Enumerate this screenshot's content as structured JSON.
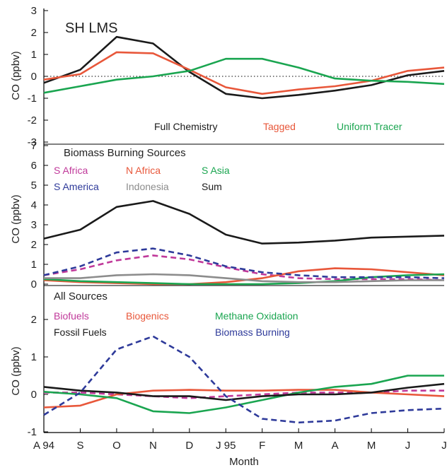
{
  "figure": {
    "xlabel": "Month",
    "x_ticks": [
      "A 94",
      "S",
      "O",
      "N",
      "D",
      "J 95",
      "F",
      "M",
      "A",
      "M",
      "J",
      "J"
    ]
  },
  "colors": {
    "black": "#1a1a1a",
    "red": "#e8573a",
    "green": "#1aa550",
    "magenta": "#c0399a",
    "blue": "#2e3a9a",
    "gray": "#8c8c8c"
  },
  "chart_data": [
    {
      "type": "line",
      "title": "SH LMS",
      "ylabel": "CO (ppbv)",
      "ylim": [
        -3,
        3
      ],
      "yticks": [
        "3",
        "2",
        "1",
        "0",
        "-1",
        "-2",
        "-3"
      ],
      "x": [
        "A 94",
        "S",
        "O",
        "N",
        "D",
        "J 95",
        "F",
        "M",
        "A",
        "M",
        "J",
        "J"
      ],
      "zero_line": true,
      "series": [
        {
          "name": "Full Chemistry",
          "color": "black",
          "dash": false,
          "values": [
            -0.3,
            0.3,
            1.8,
            1.5,
            0.2,
            -0.8,
            -1.0,
            -0.85,
            -0.65,
            -0.4,
            0.05,
            0.25
          ]
        },
        {
          "name": "Tagged",
          "color": "red",
          "dash": false,
          "values": [
            -0.15,
            0.1,
            1.1,
            1.05,
            0.3,
            -0.5,
            -0.8,
            -0.6,
            -0.45,
            -0.2,
            0.25,
            0.4
          ]
        },
        {
          "name": "Uniform Tracer",
          "color": "green",
          "dash": false,
          "values": [
            -0.75,
            -0.45,
            -0.15,
            0.0,
            0.25,
            0.8,
            0.8,
            0.4,
            -0.1,
            -0.2,
            -0.25,
            -0.35
          ]
        }
      ]
    },
    {
      "type": "line",
      "title": "Biomass Burning Sources",
      "ylabel": "CO (ppbv)",
      "ylim": [
        0,
        7
      ],
      "yticks": [
        "7",
        "6",
        "5",
        "4",
        "3",
        "2",
        "1",
        "0"
      ],
      "x": [
        "A 94",
        "S",
        "O",
        "N",
        "D",
        "J 95",
        "F",
        "M",
        "A",
        "M",
        "J",
        "J"
      ],
      "series": [
        {
          "name": "S Africa",
          "color": "magenta",
          "dash": true,
          "values": [
            0.45,
            0.75,
            1.2,
            1.45,
            1.25,
            0.85,
            0.5,
            0.3,
            0.25,
            0.25,
            0.25,
            0.2
          ]
        },
        {
          "name": "N Africa",
          "color": "red",
          "dash": false,
          "values": [
            0.2,
            0.1,
            0.05,
            0.0,
            0.0,
            0.1,
            0.3,
            0.65,
            0.8,
            0.75,
            0.6,
            0.45
          ]
        },
        {
          "name": "S Asia",
          "color": "green",
          "dash": false,
          "values": [
            0.25,
            0.15,
            0.1,
            0.05,
            0.0,
            0.0,
            0.0,
            0.05,
            0.15,
            0.35,
            0.45,
            0.5
          ]
        },
        {
          "name": "S America",
          "color": "blue",
          "dash": true,
          "values": [
            0.45,
            0.9,
            1.6,
            1.8,
            1.45,
            0.9,
            0.6,
            0.45,
            0.35,
            0.35,
            0.35,
            0.3
          ]
        },
        {
          "name": "Indonesia",
          "color": "gray",
          "dash": false,
          "values": [
            0.3,
            0.3,
            0.45,
            0.5,
            0.45,
            0.3,
            0.15,
            0.1,
            0.1,
            0.15,
            0.2,
            0.2
          ]
        },
        {
          "name": "Sum",
          "color": "black",
          "dash": false,
          "values": [
            2.3,
            2.75,
            3.9,
            4.2,
            3.55,
            2.5,
            2.05,
            2.1,
            2.2,
            2.35,
            2.4,
            2.45
          ]
        }
      ]
    },
    {
      "type": "line",
      "title": "All Sources",
      "ylabel": "CO (ppbv)",
      "ylim": [
        -1,
        2.5
      ],
      "yticks": [
        "2",
        "1",
        "0",
        "-1"
      ],
      "x": [
        "A 94",
        "S",
        "O",
        "N",
        "D",
        "J 95",
        "F",
        "M",
        "A",
        "M",
        "J",
        "J"
      ],
      "series": [
        {
          "name": "Biofuels",
          "color": "magenta",
          "dash": true,
          "values": [
            0.05,
            0.05,
            0.0,
            -0.05,
            -0.1,
            -0.05,
            0.0,
            0.05,
            0.05,
            0.05,
            0.1,
            0.1
          ]
        },
        {
          "name": "Biogenics",
          "color": "red",
          "dash": false,
          "values": [
            -0.35,
            -0.3,
            0.0,
            0.1,
            0.12,
            0.1,
            0.1,
            0.12,
            0.12,
            0.05,
            0.0,
            -0.05
          ]
        },
        {
          "name": "Methane Oxidation",
          "color": "green",
          "dash": false,
          "values": [
            0.07,
            0.0,
            -0.1,
            -0.45,
            -0.5,
            -0.35,
            -0.15,
            0.05,
            0.2,
            0.28,
            0.5,
            0.5
          ]
        },
        {
          "name": "Fossil Fuels",
          "color": "black",
          "dash": false,
          "values": [
            0.2,
            0.1,
            0.05,
            -0.05,
            -0.05,
            -0.15,
            -0.05,
            0.0,
            0.0,
            0.05,
            0.18,
            0.28
          ]
        },
        {
          "name": "Biomass Burning",
          "color": "blue",
          "dash": true,
          "values": [
            -0.55,
            0.05,
            1.2,
            1.55,
            1.0,
            -0.05,
            -0.65,
            -0.75,
            -0.7,
            -0.5,
            -0.42,
            -0.38
          ]
        }
      ]
    }
  ],
  "legends": [
    [
      {
        "text": "Full Chemistry",
        "color": "black",
        "row": 0,
        "col": 0
      },
      {
        "text": "Tagged",
        "color": "red",
        "row": 0,
        "col": 1
      },
      {
        "text": "Uniform Tracer",
        "color": "green",
        "row": 0,
        "col": 2
      }
    ],
    [
      {
        "text": "S Africa",
        "color": "magenta",
        "row": 0,
        "col": 0
      },
      {
        "text": "N Africa",
        "color": "red",
        "row": 0,
        "col": 1
      },
      {
        "text": "S Asia",
        "color": "green",
        "row": 0,
        "col": 2
      },
      {
        "text": "S America",
        "color": "blue",
        "row": 1,
        "col": 0
      },
      {
        "text": "Indonesia",
        "color": "gray",
        "row": 1,
        "col": 1
      },
      {
        "text": "Sum",
        "color": "black",
        "row": 1,
        "col": 2
      }
    ],
    [
      {
        "text": "Biofuels",
        "color": "magenta",
        "row": 0,
        "col": 0
      },
      {
        "text": "Biogenics",
        "color": "red",
        "row": 0,
        "col": 1
      },
      {
        "text": "Methane Oxidation",
        "color": "green",
        "row": 0,
        "col": 2
      },
      {
        "text": "Fossil Fuels",
        "color": "black",
        "row": 1,
        "col": 0
      },
      {
        "text": "Biomass Burning",
        "color": "blue",
        "row": 1,
        "col": 2
      }
    ]
  ]
}
